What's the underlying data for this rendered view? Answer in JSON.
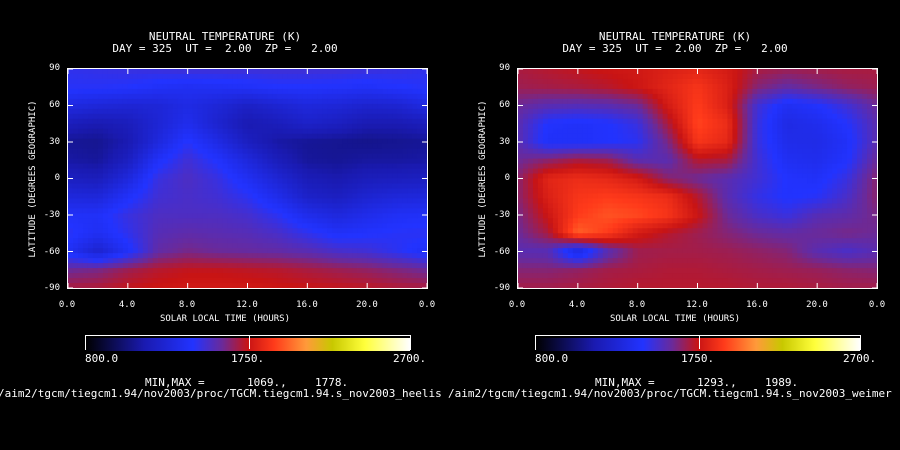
{
  "panels": [
    {
      "title_line1": "NEUTRAL TEMPERATURE (K)",
      "title_line2": "DAY = 325  UT =  2.00  ZP =   2.00",
      "ylabel": "LATITUDE (DEGREES GEOGRAPHIC)",
      "xlabel": "SOLAR LOCAL TIME (HOURS)",
      "yticks": [
        "90",
        "60",
        "30",
        "0",
        "-30",
        "-60",
        "-90"
      ],
      "xticks": [
        "0.0",
        "4.0",
        "8.0",
        "12.0",
        "16.0",
        "20.0",
        "0.0"
      ],
      "colorbar": {
        "min_label": "800.0",
        "mid_label": "1750.",
        "max_label": "2700."
      },
      "minmax_label": "MIN,MAX =",
      "min_value": "1069.,",
      "max_value": "1778.",
      "path": "/aim2/tgcm/tiegcm1.94/nov2003/proc/TGCM.tiegcm1.94.s_nov2003_heelis"
    },
    {
      "title_line1": "NEUTRAL TEMPERATURE (K)",
      "title_line2": "DAY = 325  UT =  2.00  ZP =   2.00",
      "ylabel": "LATITUDE (DEGREES GEOGRAPHIC)",
      "xlabel": "SOLAR LOCAL TIME (HOURS)",
      "yticks": [
        "90",
        "60",
        "30",
        "0",
        "-30",
        "-60",
        "-90"
      ],
      "xticks": [
        "0.0",
        "4.0",
        "8.0",
        "12.0",
        "16.0",
        "20.0",
        "0.0"
      ],
      "colorbar": {
        "min_label": "800.0",
        "mid_label": "1750.",
        "max_label": "2700."
      },
      "minmax_label": "MIN,MAX =",
      "min_value": "1293.,",
      "max_value": "1989.",
      "path": "/aim2/tgcm/tiegcm1.94/nov2003/proc/TGCM.tiegcm1.94.s_nov2003_weimer"
    }
  ],
  "chart_data": [
    {
      "type": "heatmap",
      "title": "NEUTRAL TEMPERATURE (K)",
      "subtitle": "DAY = 325  UT =  2.00  ZP =   2.00",
      "xlabel": "SOLAR LOCAL TIME (HOURS)",
      "ylabel": "LATITUDE (DEGREES GEOGRAPHIC)",
      "x": [
        0,
        2,
        4,
        6,
        8,
        10,
        12,
        14,
        16,
        18,
        20,
        22,
        24
      ],
      "y": [
        90,
        75,
        60,
        45,
        30,
        15,
        0,
        -15,
        -30,
        -45,
        -60,
        -75,
        -90
      ],
      "xlim": [
        0,
        24
      ],
      "ylim": [
        -90,
        90
      ],
      "color_range": [
        800,
        2700
      ],
      "min": 1069,
      "max": 1778,
      "z": [
        [
          1460,
          1470,
          1480,
          1490,
          1500,
          1500,
          1500,
          1500,
          1500,
          1500,
          1490,
          1480,
          1460
        ],
        [
          1440,
          1440,
          1430,
          1400,
          1380,
          1390,
          1400,
          1420,
          1420,
          1410,
          1400,
          1420,
          1440
        ],
        [
          1320,
          1290,
          1270,
          1280,
          1330,
          1280,
          1220,
          1260,
          1300,
          1280,
          1250,
          1260,
          1320
        ],
        [
          1180,
          1150,
          1180,
          1270,
          1360,
          1250,
          1150,
          1180,
          1230,
          1200,
          1150,
          1150,
          1180
        ],
        [
          1090,
          1080,
          1150,
          1300,
          1440,
          1330,
          1200,
          1120,
          1090,
          1080,
          1070,
          1080,
          1090
        ],
        [
          1120,
          1100,
          1200,
          1400,
          1500,
          1420,
          1300,
          1180,
          1100,
          1090,
          1110,
          1110,
          1120
        ],
        [
          1200,
          1180,
          1300,
          1480,
          1530,
          1480,
          1380,
          1270,
          1170,
          1140,
          1180,
          1190,
          1200
        ],
        [
          1300,
          1290,
          1400,
          1500,
          1520,
          1500,
          1450,
          1350,
          1230,
          1200,
          1260,
          1290,
          1300
        ],
        [
          1400,
          1400,
          1480,
          1530,
          1530,
          1530,
          1510,
          1450,
          1350,
          1300,
          1350,
          1390,
          1400
        ],
        [
          1450,
          1380,
          1460,
          1550,
          1570,
          1560,
          1550,
          1520,
          1460,
          1400,
          1420,
          1440,
          1450
        ],
        [
          1390,
          1250,
          1400,
          1580,
          1620,
          1600,
          1590,
          1580,
          1560,
          1520,
          1500,
          1450,
          1390
        ],
        [
          1600,
          1620,
          1680,
          1720,
          1740,
          1740,
          1730,
          1720,
          1700,
          1680,
          1660,
          1630,
          1600
        ],
        [
          1700,
          1710,
          1740,
          1760,
          1770,
          1770,
          1770,
          1760,
          1750,
          1740,
          1730,
          1710,
          1700
        ]
      ]
    },
    {
      "type": "heatmap",
      "title": "NEUTRAL TEMPERATURE (K)",
      "subtitle": "DAY = 325  UT =  2.00  ZP =   2.00",
      "xlabel": "SOLAR LOCAL TIME (HOURS)",
      "ylabel": "LATITUDE (DEGREES GEOGRAPHIC)",
      "x": [
        0,
        2,
        4,
        6,
        8,
        10,
        12,
        14,
        16,
        18,
        20,
        22,
        24
      ],
      "y": [
        90,
        75,
        60,
        45,
        30,
        15,
        0,
        -15,
        -30,
        -45,
        -60,
        -75,
        -90
      ],
      "xlim": [
        0,
        24
      ],
      "ylim": [
        -90,
        90
      ],
      "color_range": [
        800,
        2700
      ],
      "min": 1293,
      "max": 1989,
      "z": [
        [
          1700,
          1720,
          1740,
          1760,
          1770,
          1800,
          1820,
          1780,
          1700,
          1680,
          1690,
          1700,
          1700
        ],
        [
          1680,
          1690,
          1700,
          1720,
          1760,
          1820,
          1880,
          1800,
          1640,
          1580,
          1620,
          1660,
          1680
        ],
        [
          1600,
          1560,
          1550,
          1560,
          1600,
          1780,
          1900,
          1800,
          1500,
          1380,
          1420,
          1500,
          1600
        ],
        [
          1560,
          1420,
          1400,
          1420,
          1480,
          1700,
          1920,
          1850,
          1480,
          1330,
          1360,
          1430,
          1560
        ],
        [
          1560,
          1400,
          1400,
          1420,
          1450,
          1620,
          1880,
          1830,
          1480,
          1350,
          1340,
          1400,
          1560
        ],
        [
          1600,
          1650,
          1700,
          1680,
          1560,
          1560,
          1720,
          1700,
          1500,
          1380,
          1360,
          1420,
          1600
        ],
        [
          1650,
          1820,
          1850,
          1830,
          1780,
          1650,
          1600,
          1560,
          1500,
          1420,
          1400,
          1480,
          1650
        ],
        [
          1650,
          1800,
          1880,
          1900,
          1880,
          1850,
          1720,
          1560,
          1470,
          1420,
          1440,
          1520,
          1650
        ],
        [
          1620,
          1760,
          1900,
          1950,
          1930,
          1880,
          1760,
          1600,
          1520,
          1480,
          1550,
          1570,
          1620
        ],
        [
          1600,
          1700,
          1980,
          1900,
          1780,
          1720,
          1680,
          1640,
          1600,
          1580,
          1600,
          1620,
          1600
        ],
        [
          1560,
          1550,
          1300,
          1550,
          1680,
          1690,
          1690,
          1680,
          1660,
          1640,
          1560,
          1520,
          1560
        ],
        [
          1640,
          1640,
          1660,
          1690,
          1700,
          1710,
          1710,
          1700,
          1690,
          1680,
          1670,
          1650,
          1640
        ],
        [
          1690,
          1690,
          1700,
          1710,
          1720,
          1720,
          1720,
          1720,
          1710,
          1710,
          1700,
          1690,
          1690
        ]
      ]
    }
  ]
}
